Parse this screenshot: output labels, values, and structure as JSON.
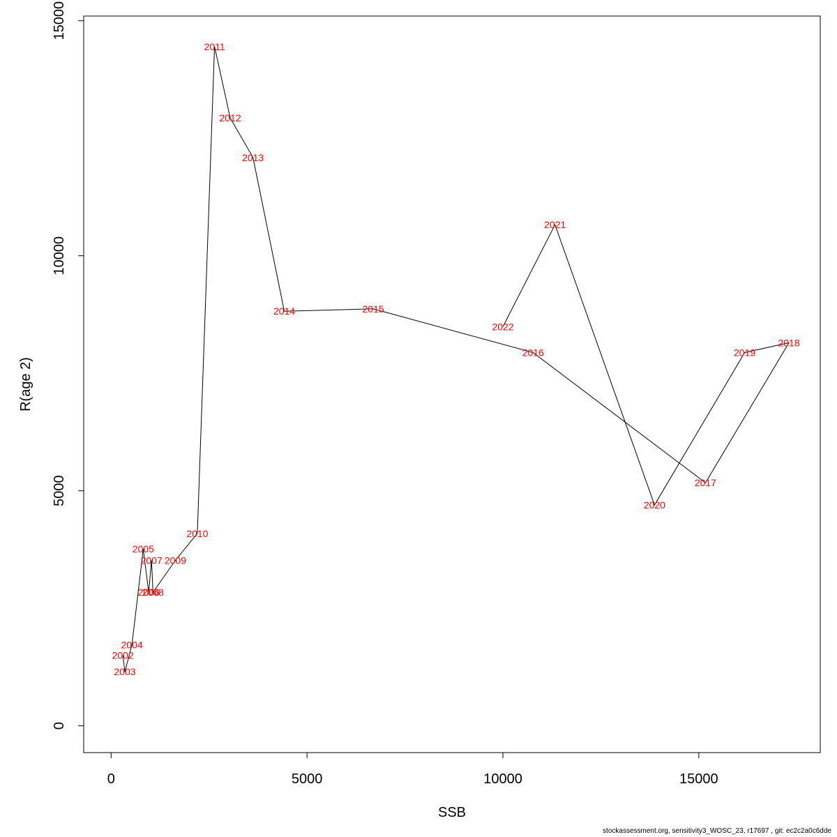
{
  "chart_data": {
    "type": "scatter",
    "connected": true,
    "xlabel": "SSB",
    "ylabel": "R(age 2)",
    "xlim": [
      -700,
      18100
    ],
    "ylim": [
      -570,
      15100
    ],
    "xticks": [
      0,
      5000,
      10000,
      15000
    ],
    "yticks": [
      0,
      5000,
      10000,
      15000
    ],
    "grid": false,
    "line_color": "#000000",
    "label_color": "#ff0000",
    "points": [
      {
        "label": "2002",
        "x": 300,
        "y": 1500
      },
      {
        "label": "2003",
        "x": 350,
        "y": 1150
      },
      {
        "label": "2004",
        "x": 530,
        "y": 1720
      },
      {
        "label": "2005",
        "x": 820,
        "y": 3760
      },
      {
        "label": "2006",
        "x": 960,
        "y": 2840
      },
      {
        "label": "2007",
        "x": 1030,
        "y": 3520
      },
      {
        "label": "2008",
        "x": 1070,
        "y": 2840
      },
      {
        "label": "2009",
        "x": 1640,
        "y": 3520
      },
      {
        "label": "2010",
        "x": 2200,
        "y": 4090
      },
      {
        "label": "2011",
        "x": 2640,
        "y": 14450
      },
      {
        "label": "2012",
        "x": 3040,
        "y": 12930
      },
      {
        "label": "2013",
        "x": 3620,
        "y": 12090
      },
      {
        "label": "2014",
        "x": 4420,
        "y": 8820
      },
      {
        "label": "2015",
        "x": 6690,
        "y": 8870
      },
      {
        "label": "2016",
        "x": 10770,
        "y": 7940
      },
      {
        "label": "2017",
        "x": 15170,
        "y": 5170
      },
      {
        "label": "2018",
        "x": 17300,
        "y": 8150
      },
      {
        "label": "2019",
        "x": 16170,
        "y": 7940
      },
      {
        "label": "2020",
        "x": 13870,
        "y": 4700
      },
      {
        "label": "2021",
        "x": 11330,
        "y": 10660
      },
      {
        "label": "2022",
        "x": 10000,
        "y": 8490
      }
    ]
  },
  "footer": "stockassessment.org, sensitivity3_WOSC_23, r17697 , git: ec2c2a0c6dde"
}
